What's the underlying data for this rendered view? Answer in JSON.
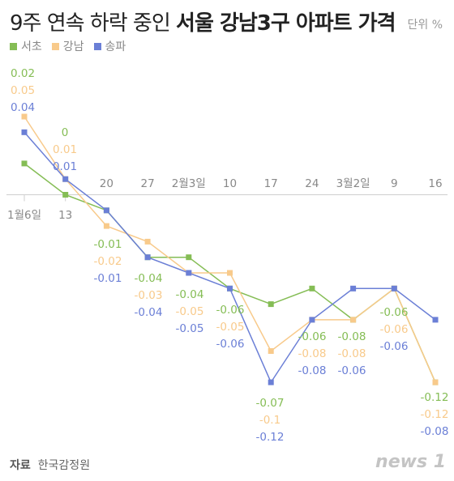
{
  "title": {
    "regular": "9주 연속 하락 중인 ",
    "bold": "서울 강남3구 아파트 가격"
  },
  "unit": "단위 %",
  "source": {
    "label": "자료",
    "name": "한국감정원"
  },
  "brand": "news 1",
  "colors": {
    "서초": "#85bd55",
    "강남": "#f8ca8b",
    "송파": "#6b7fd6"
  },
  "chart_data": {
    "type": "line",
    "title": "9주 연속 하락 중인 서울 강남3구 아파트 가격",
    "ylabel": "",
    "unit": "단위 %",
    "legend_position": "top-left",
    "grid": false,
    "categories": [
      "1월6일",
      "13",
      "20",
      "27",
      "2월3일",
      "10",
      "17",
      "24",
      "3월2일",
      "9",
      "16"
    ],
    "ylim": [
      -0.13,
      0.06
    ],
    "series": [
      {
        "name": "서초",
        "values": [
          0.02,
          0,
          -0.01,
          -0.04,
          -0.04,
          -0.06,
          -0.07,
          -0.06,
          -0.08,
          -0.06,
          -0.12
        ]
      },
      {
        "name": "강남",
        "values": [
          0.05,
          0.01,
          -0.02,
          -0.03,
          -0.05,
          -0.05,
          -0.1,
          -0.08,
          -0.08,
          -0.06,
          -0.12
        ]
      },
      {
        "name": "송파",
        "values": [
          0.04,
          0.01,
          -0.01,
          -0.04,
          -0.05,
          -0.06,
          -0.12,
          -0.08,
          -0.06,
          -0.06,
          -0.08
        ]
      }
    ],
    "data_labels": [
      [
        "0.02",
        "0.05",
        "0.04"
      ],
      [
        "0",
        "0.01",
        "0.01"
      ],
      [
        "-0.01",
        "-0.02",
        "-0.01"
      ],
      [
        "-0.04",
        "-0.03",
        "-0.04"
      ],
      [
        "-0.04",
        "-0.05",
        "-0.05"
      ],
      [
        "-0.06",
        "-0.05",
        "-0.06"
      ],
      [
        "-0.07",
        "-0.1",
        "-0.12"
      ],
      [
        "-0.06",
        "-0.08",
        "-0.08"
      ],
      [
        "-0.08",
        "-0.08",
        "-0.06"
      ],
      [
        "-0.06",
        "-0.06",
        "-0.06"
      ],
      [
        "-0.12",
        "-0.12",
        "-0.08"
      ]
    ]
  }
}
